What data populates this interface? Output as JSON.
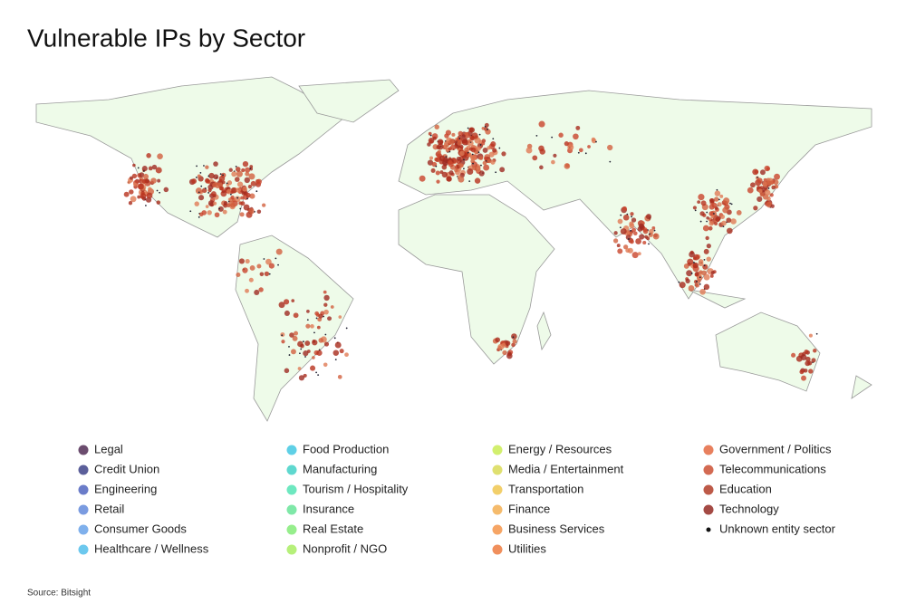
{
  "title": "Vulnerable IPs by Sector",
  "legend": [
    {
      "label": "Legal",
      "color": "#6b4c6e"
    },
    {
      "label": "Credit Union",
      "color": "#5b5f9a"
    },
    {
      "label": "Engineering",
      "color": "#6a7cc9"
    },
    {
      "label": "Retail",
      "color": "#7a9be0"
    },
    {
      "label": "Consumer Goods",
      "color": "#7fb0ec"
    },
    {
      "label": "Healthcare / Wellness",
      "color": "#6cc8ee"
    },
    {
      "label": "Food Production",
      "color": "#5fd0e6"
    },
    {
      "label": "Manufacturing",
      "color": "#5fd8cf"
    },
    {
      "label": "Tourism / Hospitality",
      "color": "#6ee8c0"
    },
    {
      "label": "Insurance",
      "color": "#7fe8a8"
    },
    {
      "label": "Real Estate",
      "color": "#96ee8c"
    },
    {
      "label": "Nonprofit / NGO",
      "color": "#b6f07a"
    },
    {
      "label": "Energy / Resources",
      "color": "#d2ef6e"
    },
    {
      "label": "Media / Entertainment",
      "color": "#dfe070"
    },
    {
      "label": "Transportation",
      "color": "#f2cf6a"
    },
    {
      "label": "Finance",
      "color": "#f5bb6c"
    },
    {
      "label": "Business Services",
      "color": "#f6a565"
    },
    {
      "label": "Utilities",
      "color": "#f08f5c"
    },
    {
      "label": "Government / Politics",
      "color": "#e8805e"
    },
    {
      "label": "Telecommunications",
      "color": "#d36a52"
    },
    {
      "label": "Education",
      "color": "#bd5a48"
    },
    {
      "label": "Technology",
      "color": "#a44a44"
    },
    {
      "label": "Unknown entity sector",
      "color": "#111111"
    }
  ],
  "source": "Source: Bitsight"
}
